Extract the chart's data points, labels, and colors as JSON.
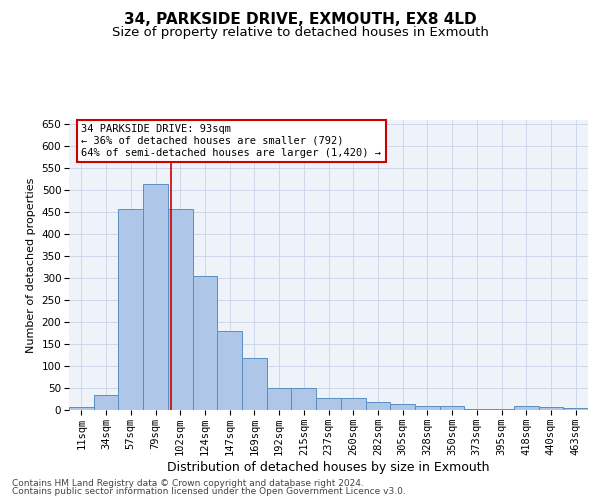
{
  "title1": "34, PARKSIDE DRIVE, EXMOUTH, EX8 4LD",
  "title2": "Size of property relative to detached houses in Exmouth",
  "xlabel": "Distribution of detached houses by size in Exmouth",
  "ylabel": "Number of detached properties",
  "categories": [
    "11sqm",
    "34sqm",
    "57sqm",
    "79sqm",
    "102sqm",
    "124sqm",
    "147sqm",
    "169sqm",
    "192sqm",
    "215sqm",
    "237sqm",
    "260sqm",
    "282sqm",
    "305sqm",
    "328sqm",
    "350sqm",
    "373sqm",
    "395sqm",
    "418sqm",
    "440sqm",
    "463sqm"
  ],
  "values": [
    7,
    35,
    457,
    515,
    457,
    305,
    180,
    118,
    50,
    50,
    27,
    27,
    18,
    13,
    9,
    8,
    2,
    2,
    8,
    7,
    4
  ],
  "bar_color": "#aec6e8",
  "bar_edge_color": "#5a8fc2",
  "property_line_color": "#cc0000",
  "annotation_text": "34 PARKSIDE DRIVE: 93sqm\n← 36% of detached houses are smaller (792)\n64% of semi-detached houses are larger (1,420) →",
  "annotation_box_color": "#cc0000",
  "ylim": [
    0,
    660
  ],
  "yticks": [
    0,
    50,
    100,
    150,
    200,
    250,
    300,
    350,
    400,
    450,
    500,
    550,
    600,
    650
  ],
  "grid_color": "#c8d4e8",
  "background_color": "#eef2f9",
  "footer1": "Contains HM Land Registry data © Crown copyright and database right 2024.",
  "footer2": "Contains public sector information licensed under the Open Government Licence v3.0.",
  "title1_fontsize": 11,
  "title2_fontsize": 9.5,
  "xlabel_fontsize": 9,
  "ylabel_fontsize": 8,
  "tick_fontsize": 7.5,
  "footer_fontsize": 6.5,
  "ann_fontsize": 7.5,
  "line_x_index": 3.61
}
